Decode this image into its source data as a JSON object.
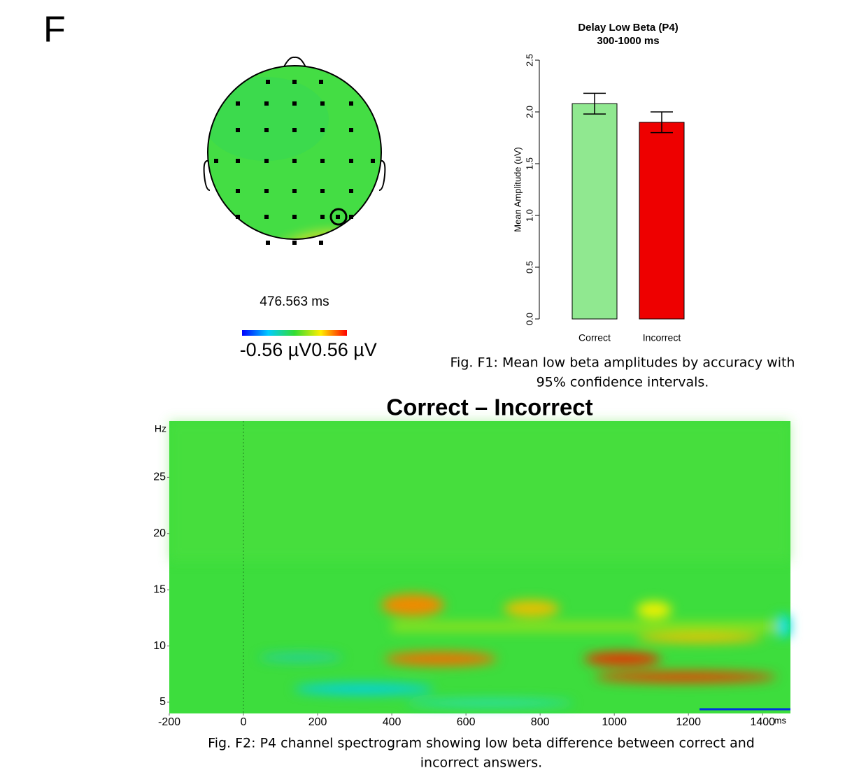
{
  "panel_label": "F",
  "topomap": {
    "time_label": "476.563 ms",
    "scale_min_label": "-0.56 µV",
    "scale_max_label": "0.56 µV"
  },
  "chart_data": [
    {
      "type": "bar",
      "title": "Delay Low Beta (P4)",
      "subtitle": "300-1000 ms",
      "y_label": "Mean Amplitude (uV)",
      "categories": [
        "Correct",
        "Incorrect"
      ],
      "values": [
        2.08,
        1.9
      ],
      "errors": [
        0.1,
        0.1
      ],
      "colors": [
        "#90e890",
        "#ee0000"
      ],
      "ylim": [
        0,
        2.5
      ],
      "yticks": [
        {
          "value": 0,
          "label": "0.0"
        },
        {
          "value": 0.5,
          "label": "0.5"
        },
        {
          "value": 1,
          "label": "1.0"
        },
        {
          "value": 1.5,
          "label": "1.5"
        },
        {
          "value": 2,
          "label": "2.0"
        },
        {
          "value": 2.5,
          "label": "2.5"
        }
      ],
      "caption": [
        "Fig. F1: Mean low beta amplitudes by accuracy with",
        "95% confidence intervals."
      ]
    },
    {
      "type": "heatmap",
      "title": "Correct – Incorrect",
      "x_unit": "ms",
      "y_unit": "Hz",
      "xlim": [
        -200,
        1475
      ],
      "xticks": [
        -200,
        0,
        200,
        400,
        600,
        800,
        1000,
        1200,
        1400
      ],
      "ylim": [
        4,
        30
      ],
      "yticks": [
        5,
        10,
        15,
        20,
        25
      ],
      "caption": [
        "Fig. F2: P4 channel spectrogram showing low beta difference between correct and",
        "incorrect answers."
      ]
    }
  ]
}
